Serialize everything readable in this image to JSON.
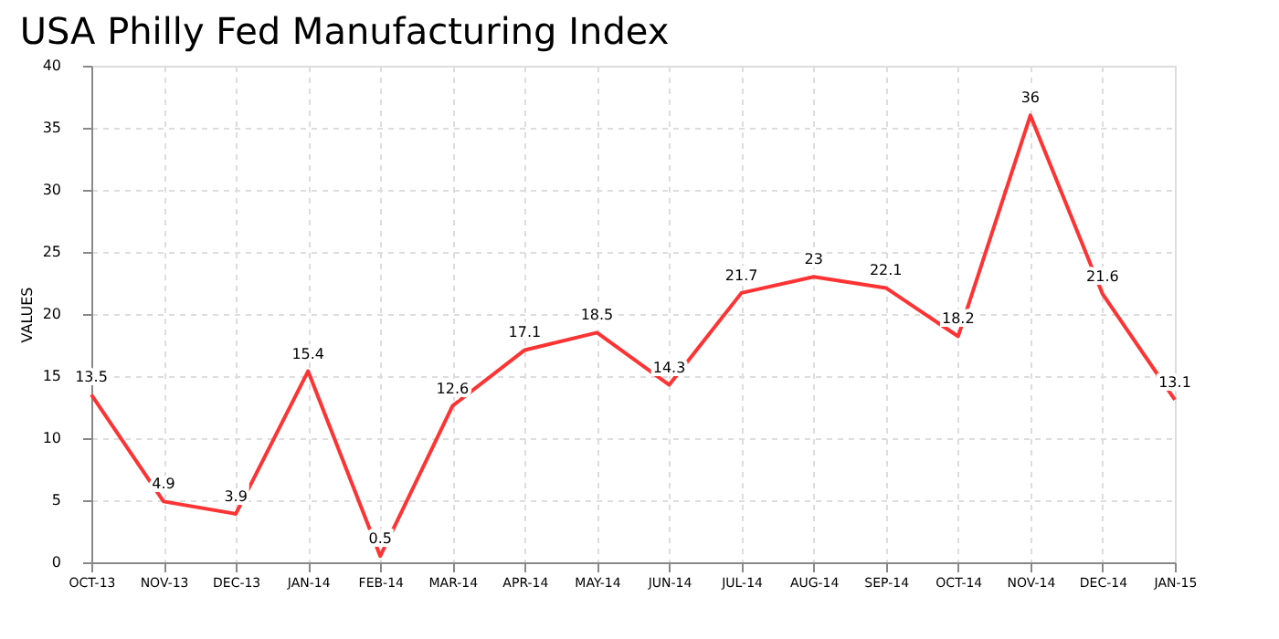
{
  "chart_data": {
    "type": "line",
    "title": "USA Philly Fed Manufacturing Index",
    "ylabel": "VALUES",
    "categories": [
      "OCT-13",
      "NOV-13",
      "DEC-13",
      "JAN-14",
      "FEB-14",
      "MAR-14",
      "APR-14",
      "MAY-14",
      "JUN-14",
      "JUL-14",
      "AUG-14",
      "SEP-14",
      "OCT-14",
      "NOV-14",
      "DEC-14",
      "JAN-15"
    ],
    "series": [
      {
        "color": "#ff3333",
        "values": [
          13.5,
          4.9,
          3.9,
          15.4,
          0.5,
          12.6,
          17.1,
          18.5,
          14.3,
          21.7,
          23,
          22.1,
          18.2,
          36,
          21.6,
          13.1
        ]
      }
    ],
    "ylim": [
      0,
      40
    ],
    "yticks": [
      0,
      5,
      10,
      15,
      20,
      25,
      30,
      35,
      40
    ],
    "grid": true,
    "data_labels": true,
    "marker": "none",
    "line_style": "solid"
  }
}
